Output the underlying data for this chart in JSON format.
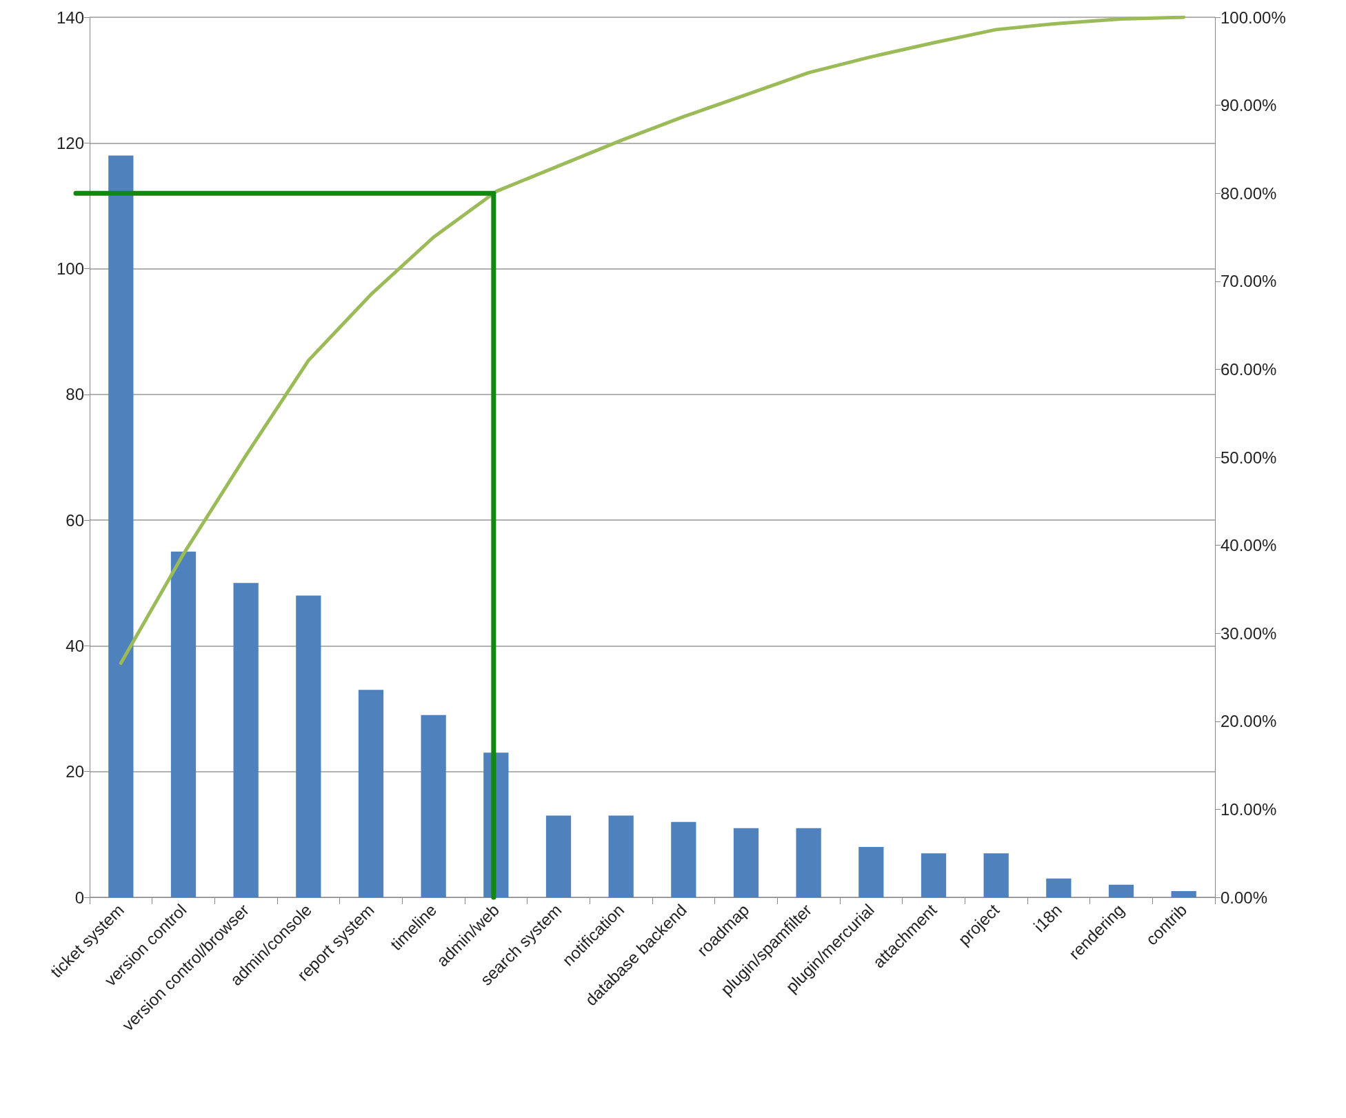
{
  "chart_data": {
    "type": "bar",
    "categories": [
      "ticket system",
      "version control",
      "version control/browser",
      "admin/console",
      "report system",
      "timeline",
      "admin/web",
      "search system",
      "notification",
      "database backend",
      "roadmap",
      "plugin/spamfilter",
      "plugin/mercurial",
      "attachment",
      "project",
      "i18n",
      "rendering",
      "contrib"
    ],
    "series": [
      {
        "color": "#4f81bd",
        "values": [
          118,
          55,
          50,
          48,
          33,
          29,
          23,
          13,
          13,
          12,
          11,
          11,
          8,
          7,
          7,
          3,
          2,
          1
        ]
      },
      {
        "type": "line",
        "axis": "y2",
        "color": "#9bbb59",
        "values": [
          26.6,
          39.0,
          50.2,
          61.0,
          68.5,
          75.0,
          80.2,
          83.1,
          86.0,
          88.7,
          91.2,
          93.7,
          95.5,
          97.1,
          98.6,
          99.3,
          99.8,
          100
        ]
      }
    ],
    "ylim": [
      0,
      140
    ],
    "yticks": [
      0,
      20,
      40,
      60,
      80,
      100,
      120,
      140
    ],
    "y2lim": [
      0,
      100
    ],
    "y2ticks": [
      {
        "value": 0,
        "label": "0.00%"
      },
      {
        "value": 10,
        "label": "10.00%"
      },
      {
        "value": 20,
        "label": "20.00%"
      },
      {
        "value": 30,
        "label": "30.00%"
      },
      {
        "value": 40,
        "label": "40.00%"
      },
      {
        "value": 50,
        "label": "50.00%"
      },
      {
        "value": 60,
        "label": "60.00%"
      },
      {
        "value": 70,
        "label": "70.00%"
      },
      {
        "value": 80,
        "label": "80.00%"
      },
      {
        "value": 90,
        "label": "90.00%"
      },
      {
        "value": 100,
        "label": "100.00%"
      }
    ],
    "ref_lines": [
      {
        "axis": "y2",
        "value": 80,
        "color": "#118811"
      }
    ],
    "grid": "y",
    "marker": "none",
    "line_style": "solid"
  }
}
